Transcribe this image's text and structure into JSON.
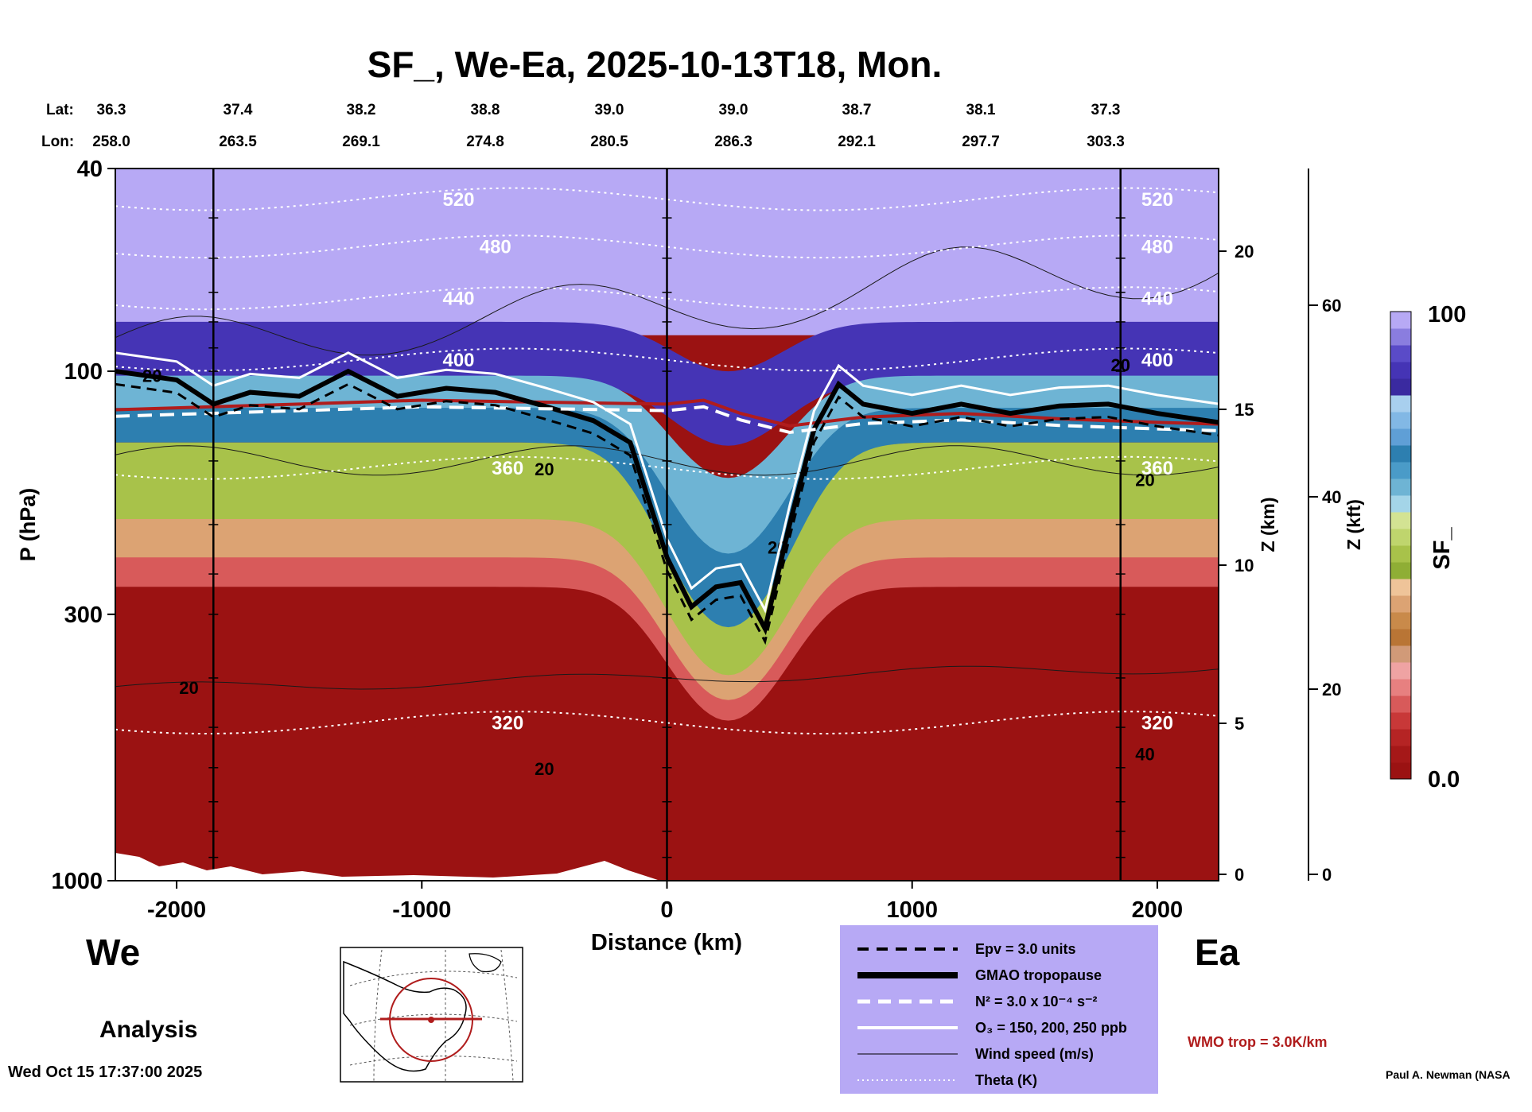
{
  "header": {
    "title": "SF_, We-Ea, 2025-10-13T18, Mon."
  },
  "coords": {
    "lat_label": "Lat:",
    "lon_label": "Lon:",
    "lat": [
      "36.3",
      "37.4",
      "38.2",
      "38.8",
      "39.0",
      "39.0",
      "38.7",
      "38.1",
      "37.3"
    ],
    "lon": [
      "258.0",
      "263.5",
      "269.1",
      "274.8",
      "280.5",
      "286.3",
      "292.1",
      "297.7",
      "303.3"
    ]
  },
  "direction": {
    "west": "We",
    "east": "Ea"
  },
  "analysis_label": "Analysis",
  "timestamp": "Wed Oct 15 17:37:00 2025",
  "credit": "Paul A. Newman (NASA",
  "wmo_note": "WMO trop = 3.0K/km",
  "colors": {
    "background": "#ffffff",
    "stratosphere": "#b7a9f5",
    "tropopause_fold": "#4a9bc8",
    "troposphere": "#9b1212",
    "wmo_red": "#b01c1c",
    "legend_bg": "#b7a9f5"
  },
  "legend": {
    "items": [
      {
        "style": "dashed-black",
        "label": "Epv = 3.0 units"
      },
      {
        "style": "thick-black",
        "label": "GMAO tropopause"
      },
      {
        "style": "dashed-white",
        "label": "N² = 3.0 x 10⁻⁴ s⁻²"
      },
      {
        "style": "solid-white",
        "label": "O₃ = 150, 200, 250 ppb"
      },
      {
        "style": "thin-black",
        "label": "Wind speed (m/s)"
      },
      {
        "style": "dotted-white",
        "label": "Theta (K)"
      }
    ]
  },
  "chart_data": {
    "type": "heatmap",
    "title": "SF_, We-Ea, 2025-10-13T18, Mon.",
    "xlabel": "Distance (km)",
    "ylabel": "P (hPa)",
    "y2label": "Z (km)",
    "y3label": "Z (kft)",
    "colorbar_label": "SF_",
    "x_range": [
      -2250,
      2250
    ],
    "x_ticks": [
      -2000,
      -1000,
      0,
      1000,
      2000
    ],
    "y_range_hpa": [
      1000,
      40
    ],
    "y_scale": "log",
    "y_ticks_hpa": [
      40,
      100,
      300,
      1000
    ],
    "z_km_ticks": [
      0,
      5,
      10,
      15,
      20
    ],
    "z_kft_ticks": [
      0,
      20,
      40,
      60
    ],
    "colorbar_range": [
      0.0,
      100
    ],
    "colorbar_tick_labels": [
      "100",
      "0.0"
    ],
    "colorbar_levels": [
      "#9b1212",
      "#a51818",
      "#b52424",
      "#c83838",
      "#d85a5a",
      "#e78080",
      "#efa3a3",
      "#d19a78",
      "#b97535",
      "#c98a4a",
      "#dca373",
      "#efc499",
      "#8fae35",
      "#a8c24a",
      "#bfd56d",
      "#d3e393",
      "#a4d5e8",
      "#6eb4d4",
      "#4a9bc8",
      "#2d7fb0",
      "#5f9fd6",
      "#82b8e5",
      "#a8cfee",
      "#3a2aa0",
      "#4534b5",
      "#5a4bc8",
      "#8a7ddf",
      "#b7a9f5"
    ],
    "theta_contours_K": [
      320,
      360,
      400,
      440,
      480,
      520
    ],
    "wind_contour_labels": [
      "20",
      "20",
      "20",
      "20",
      "20",
      "20",
      "20",
      "40"
    ],
    "gmao_tropopause_hpa": [
      [
        -2250,
        100
      ],
      [
        -2000,
        104
      ],
      [
        -1850,
        116
      ],
      [
        -1700,
        110
      ],
      [
        -1500,
        112
      ],
      [
        -1300,
        100
      ],
      [
        -1100,
        112
      ],
      [
        -900,
        108
      ],
      [
        -700,
        110
      ],
      [
        -500,
        117
      ],
      [
        -300,
        125
      ],
      [
        -150,
        138
      ],
      [
        0,
        232
      ],
      [
        100,
        290
      ],
      [
        200,
        265
      ],
      [
        300,
        260
      ],
      [
        400,
        320
      ],
      [
        500,
        200
      ],
      [
        600,
        130
      ],
      [
        700,
        106
      ],
      [
        800,
        116
      ],
      [
        1000,
        121
      ],
      [
        1200,
        116
      ],
      [
        1400,
        121
      ],
      [
        1600,
        117
      ],
      [
        1800,
        116
      ],
      [
        2000,
        121
      ],
      [
        2250,
        126
      ]
    ],
    "wmo_tropopause_hpa": [
      [
        -2250,
        119
      ],
      [
        -1500,
        116
      ],
      [
        -1000,
        114
      ],
      [
        -500,
        115
      ],
      [
        0,
        116
      ],
      [
        150,
        114
      ],
      [
        300,
        121
      ],
      [
        500,
        128
      ],
      [
        800,
        123
      ],
      [
        1200,
        121
      ],
      [
        1600,
        124
      ],
      [
        2000,
        126
      ],
      [
        2250,
        127
      ]
    ]
  }
}
